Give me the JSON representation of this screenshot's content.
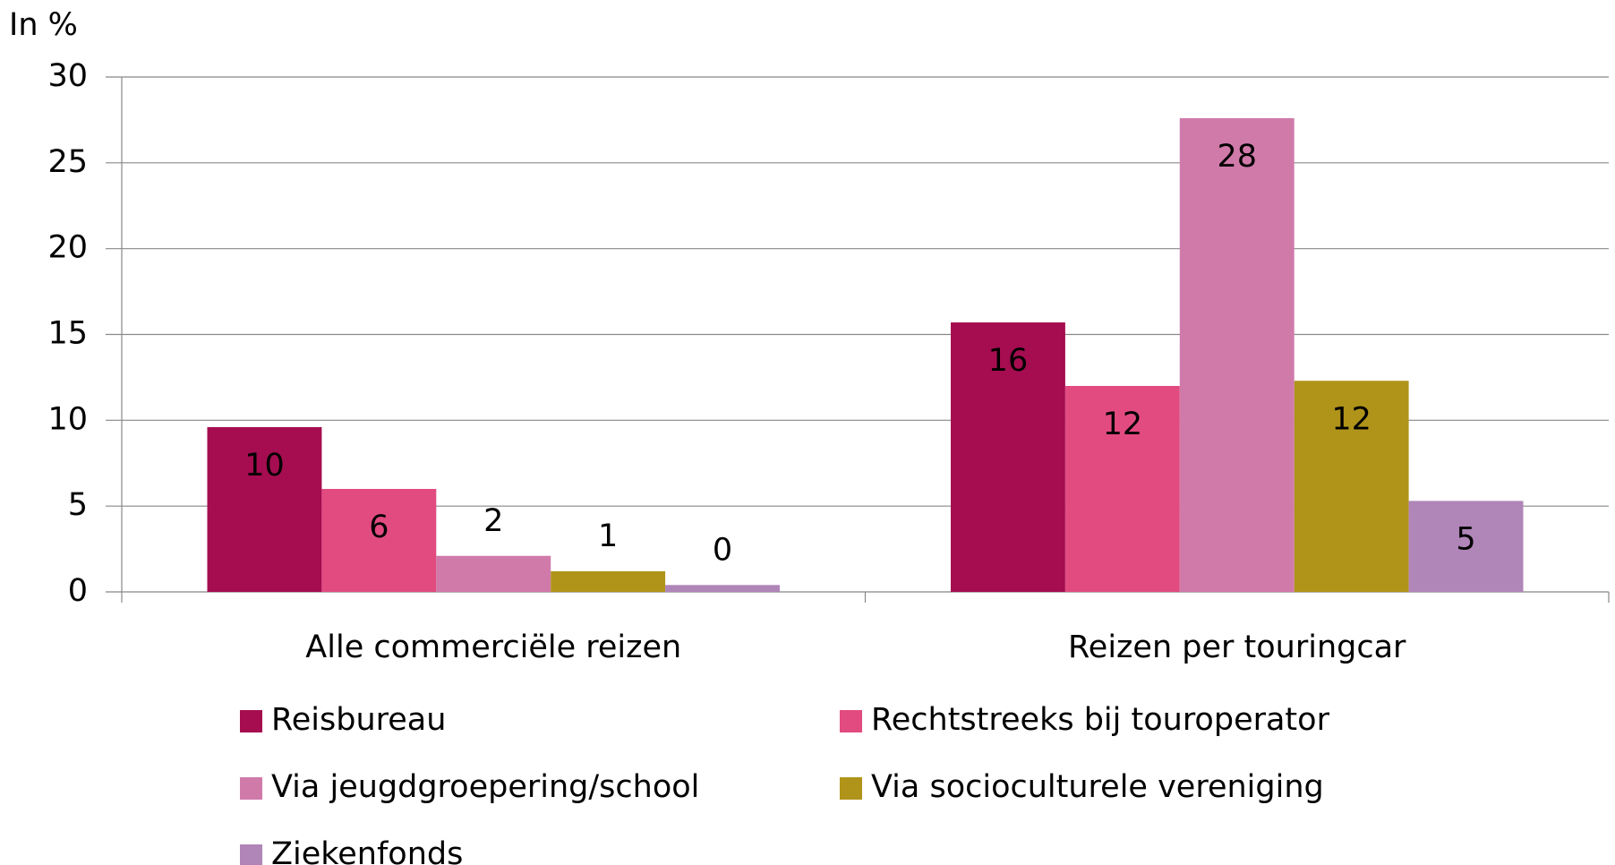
{
  "chart_data": {
    "type": "bar",
    "y_axis_label": "In %",
    "categories": [
      "Alle commerciële reizen",
      "Reizen per touringcar"
    ],
    "series": [
      {
        "name": "Reisbureau",
        "color": "#a50d50",
        "values": [
          9.6,
          15.7
        ],
        "value_labels": [
          "10",
          "16"
        ]
      },
      {
        "name": "Rechtstreeks bij touroperator",
        "color": "#e24b80",
        "values": [
          6.0,
          12.0
        ],
        "value_labels": [
          "6",
          "12"
        ]
      },
      {
        "name": "Via jeugdgroepering/school",
        "color": "#d07aaa",
        "values": [
          2.1,
          27.6
        ],
        "value_labels": [
          "2",
          "28"
        ]
      },
      {
        "name": "Via socioculturele vereniging",
        "color": "#b0941a",
        "values": [
          1.2,
          12.3
        ],
        "value_labels": [
          "1",
          "12"
        ]
      },
      {
        "name": "Ziekenfonds",
        "color": "#b085b8",
        "values": [
          0.4,
          5.3
        ],
        "value_labels": [
          "0",
          "5"
        ]
      }
    ],
    "ylim": [
      0,
      30
    ],
    "yticks": [
      0,
      5,
      10,
      15,
      20,
      25,
      30
    ],
    "grid": true,
    "legend": "bottom"
  }
}
